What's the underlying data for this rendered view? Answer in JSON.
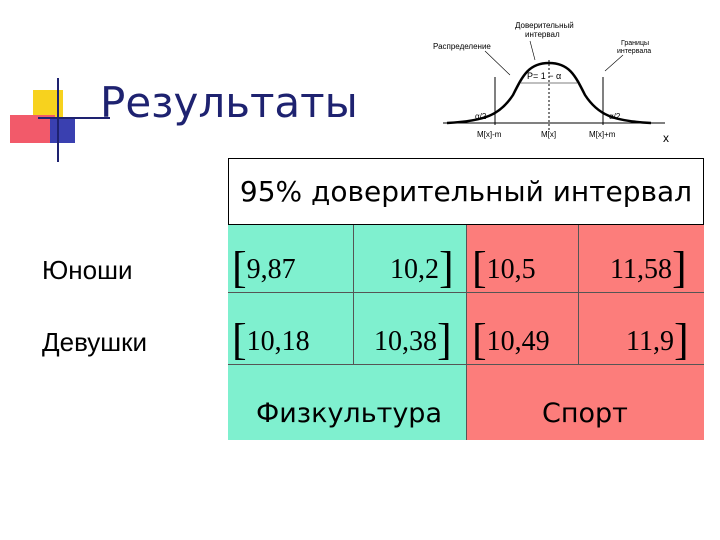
{
  "slide": {
    "title": "Результаты"
  },
  "diagram": {
    "label_distribution": "Распределение",
    "label_interval_l1": "Доверительный",
    "label_interval_l2": "интервал",
    "label_bounds_l1": "Границы",
    "label_bounds_l2": "интервала",
    "label_p": "P= 1 − α",
    "alpha_left": "α/2",
    "alpha_right": "α/2",
    "tick_left": "M[x]-m",
    "tick_mid": "M[x]",
    "tick_right": "M[x]+m",
    "axis_x": "x"
  },
  "table": {
    "header": "95% доверительный интервал",
    "rows": [
      {
        "label": "Юноши",
        "fiz_low": "9,87",
        "fiz_high": "10,2",
        "sport_low": "10,5",
        "sport_high": "11,58"
      },
      {
        "label": "Девушки",
        "fiz_low": "10,18",
        "fiz_high": "10,38",
        "sport_low": "10,49",
        "sport_high": "11,9"
      }
    ],
    "col_fiz": "Физкультура",
    "col_sport": "Спорт",
    "bracket_open": "[",
    "bracket_close": "]"
  },
  "colors": {
    "fiz": "#7ff0cf",
    "sport": "#fc7d7b",
    "title": "#1e2270"
  }
}
